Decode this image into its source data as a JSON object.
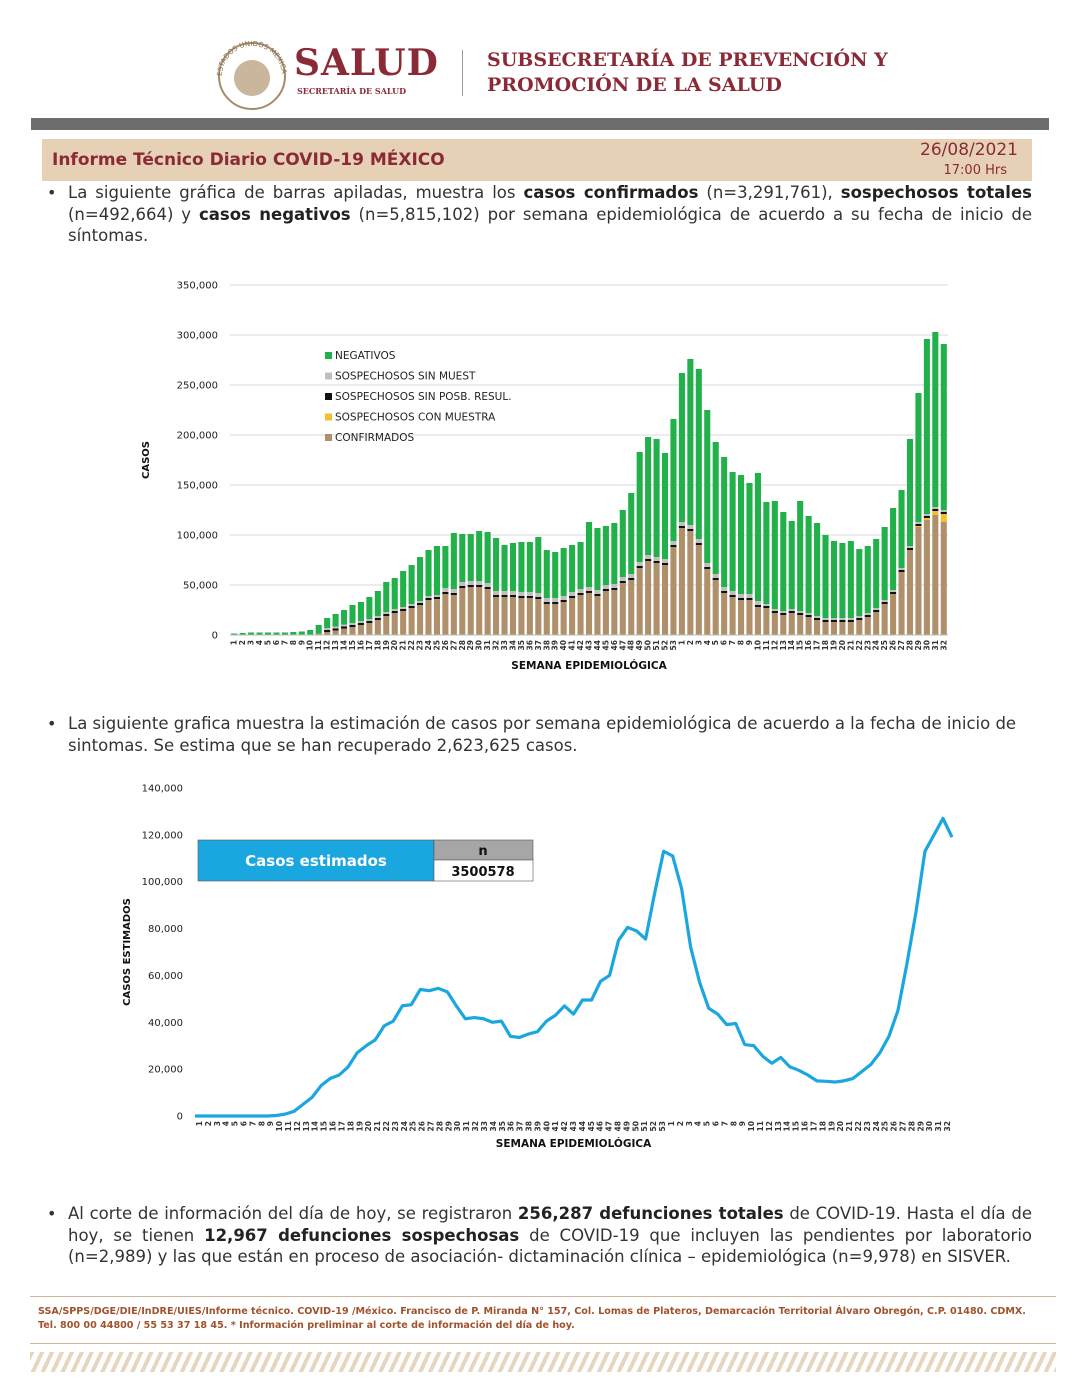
{
  "header": {
    "seal_text": "ESTADOS UNIDOS MEXICANOS",
    "brand": "SALUD",
    "brand_sub": "SECRETARÍA DE SALUD",
    "office_line1": "SUBSECRETARÍA DE PREVENCIÓN Y",
    "office_line2": "PROMOCIÓN DE LA SALUD"
  },
  "report": {
    "title": "Informe Técnico Diario COVID-19 MÉXICO",
    "date": "26/08/2021",
    "time": "17:00 Hrs"
  },
  "paragraphs": [
    [
      {
        "text": "La siguiente gráfica de barras apiladas, muestra los "
      },
      {
        "text": "casos confirmados",
        "bold": true
      },
      {
        "text": " (n=3,291,761), "
      },
      {
        "text": "sospechosos totales",
        "bold": true
      },
      {
        "text": " (n=492,664) y "
      },
      {
        "text": "casos negativos",
        "bold": true
      },
      {
        "text": " (n=5,815,102) por semana epidemiológica de acuerdo a su fecha de inicio de síntomas."
      }
    ],
    [
      {
        "text": "La siguiente grafica muestra la estimación de casos por semana epidemiológica de acuerdo a la fecha de inicio de sintomas. Se estima que se han recuperado 2,623,625 casos."
      }
    ],
    [
      {
        "text": "Al corte de información del día de hoy, se registraron "
      },
      {
        "text": "256,287 defunciones totales",
        "bold": true
      },
      {
        "text": " de COVID-19. Hasta el día de hoy, se tienen "
      },
      {
        "text": "12,967 defunciones sospechosas",
        "bold": true
      },
      {
        "text": " de COVID-19 que incluyen las pendientes por laboratorio (n=2,989) y las que están en proceso de asociación- dictaminación clínica – epidemiológica (n=9,978) en SISVER."
      }
    ]
  ],
  "footer": {
    "line1": "SSA/SPPS/DGE/DIE/InDRE/UIES/Informe técnico. COVID-19 /México. Francisco de P. Miranda N° 157, Col. Lomas de Plateros, Demarcación Territorial Álvaro Obregón, C.P. 01480. CDMX.",
    "line2": "Tel. 800 00 44800 / 55 53 37 18 45. * Información preliminar al corte de información del día de hoy."
  },
  "chart_data": [
    {
      "type": "stacked_bar",
      "x_label": "SEMANA EPIDEMIOLÓGICA",
      "y_label": "CASOS",
      "grid": true,
      "categories": [
        "1",
        "2",
        "3",
        "4",
        "5",
        "6",
        "7",
        "8",
        "9",
        "10",
        "11",
        "12",
        "13",
        "14",
        "15",
        "16",
        "17",
        "18",
        "19",
        "20",
        "21",
        "22",
        "23",
        "24",
        "25",
        "26",
        "27",
        "28",
        "29",
        "30",
        "31",
        "32",
        "33",
        "34",
        "35",
        "36",
        "37",
        "38",
        "39",
        "40",
        "41",
        "42",
        "43",
        "44",
        "45",
        "46",
        "47",
        "48",
        "49",
        "50",
        "51",
        "52",
        "53",
        "1",
        "2",
        "3",
        "4",
        "5",
        "6",
        "7",
        "8",
        "9",
        "10",
        "11",
        "12",
        "13",
        "14",
        "15",
        "16",
        "17",
        "18",
        "19",
        "20",
        "21",
        "22",
        "23",
        "24",
        "25",
        "26",
        "27",
        "28",
        "29",
        "30",
        "31",
        "32"
      ],
      "ylim": [
        0,
        350000
      ],
      "yticks": [
        0,
        {
          "value": 50000,
          "label": "50,000"
        },
        {
          "value": 100000,
          "label": "100,000"
        },
        {
          "value": 150000,
          "label": "150,000"
        },
        {
          "value": 200000,
          "label": "200,000"
        },
        {
          "value": 250000,
          "label": "250,000"
        },
        {
          "value": 300000,
          "label": "300,000"
        },
        {
          "value": 350000,
          "label": "350,000"
        }
      ],
      "series": [
        {
          "name": "CONFIRMADOS",
          "color": "#b0906a",
          "values": [
            0,
            0,
            0,
            0,
            0,
            0,
            0,
            100,
            200,
            500,
            1500,
            3000,
            4500,
            6500,
            8000,
            10000,
            12000,
            15000,
            19000,
            22000,
            24000,
            27000,
            30000,
            35000,
            36000,
            41000,
            40000,
            47000,
            48000,
            48000,
            46000,
            38000,
            38000,
            38000,
            37000,
            37000,
            36000,
            31000,
            31000,
            33000,
            37000,
            40000,
            42000,
            39000,
            44000,
            45000,
            52000,
            55000,
            67000,
            74000,
            72000,
            70000,
            88000,
            107000,
            104000,
            90000,
            66000,
            55000,
            42000,
            38000,
            35000,
            35000,
            28000,
            27000,
            22000,
            20000,
            22000,
            20000,
            18000,
            15000,
            13000,
            13000,
            13000,
            13000,
            15000,
            18000,
            23000,
            31000,
            41000,
            63000,
            85000,
            108000,
            115000,
            120000,
            113000
          ]
        },
        {
          "name": "SOSPECHOSOS CON MUESTRA",
          "color": "#f2c12e",
          "values": [
            0,
            0,
            0,
            0,
            0,
            0,
            0,
            0,
            0,
            0,
            0,
            0,
            0,
            0,
            0,
            0,
            0,
            0,
            0,
            0,
            0,
            0,
            0,
            0,
            0,
            0,
            0,
            0,
            0,
            0,
            0,
            0,
            0,
            0,
            0,
            0,
            0,
            0,
            0,
            0,
            0,
            0,
            0,
            0,
            0,
            0,
            0,
            0,
            0,
            0,
            0,
            0,
            0,
            0,
            0,
            0,
            0,
            0,
            0,
            0,
            0,
            0,
            0,
            0,
            0,
            0,
            0,
            0,
            0,
            0,
            0,
            0,
            0,
            0,
            0,
            0,
            0,
            0,
            0,
            0,
            0,
            1000,
            2000,
            4000,
            8000
          ]
        },
        {
          "name": "SOSPECHOSOS SIN POSB. RESUL.",
          "color": "#111111",
          "values": [
            0,
            0,
            0,
            0,
            0,
            0,
            0,
            0,
            0,
            0,
            0,
            2000,
            2000,
            2000,
            2000,
            2000,
            2000,
            2000,
            2000,
            2000,
            2000,
            2000,
            2000,
            2000,
            2000,
            2000,
            2000,
            2000,
            2000,
            2000,
            2000,
            2000,
            2000,
            2000,
            2000,
            2000,
            2000,
            2000,
            2000,
            2000,
            2000,
            2000,
            2000,
            2000,
            2000,
            2000,
            2000,
            2000,
            2000,
            2000,
            2000,
            2000,
            2000,
            2000,
            2000,
            2000,
            2000,
            2000,
            2000,
            2000,
            2000,
            2000,
            2000,
            2000,
            2000,
            2000,
            2000,
            2000,
            2000,
            2000,
            2000,
            2000,
            2000,
            2000,
            2000,
            2000,
            2000,
            2000,
            2000,
            2000,
            2000,
            2000,
            2000,
            2000,
            2000
          ]
        },
        {
          "name": "SOSPECHOSOS SIN MUEST",
          "color": "#bfbfbf",
          "values": [
            0,
            0,
            0,
            0,
            0,
            0,
            0,
            0,
            0,
            0,
            0,
            2000,
            2000,
            2000,
            2000,
            2000,
            2000,
            2000,
            2000,
            2000,
            2000,
            2000,
            2000,
            2000,
            2000,
            4000,
            4000,
            4000,
            4000,
            4000,
            4000,
            4000,
            4000,
            4000,
            4000,
            4000,
            4000,
            4000,
            4000,
            4000,
            4000,
            4000,
            4000,
            4000,
            4000,
            4000,
            4000,
            4000,
            4000,
            4000,
            4000,
            4000,
            4000,
            4000,
            4000,
            4000,
            4000,
            4000,
            4000,
            4000,
            4000,
            4000,
            4000,
            2000,
            2000,
            2000,
            2000,
            2000,
            2000,
            2000,
            2000,
            2000,
            2000,
            2000,
            2000,
            2000,
            2000,
            2000,
            2000,
            2000,
            2000,
            2000,
            2000,
            2000,
            2000
          ]
        },
        {
          "name": "NEGATIVOS",
          "color": "#22b04b",
          "values": [
            1500,
            2000,
            2500,
            2500,
            2500,
            2500,
            2500,
            2900,
            3300,
            4500,
            8500,
            10000,
            12500,
            14500,
            18000,
            19000,
            22000,
            25000,
            30000,
            31000,
            36000,
            39000,
            44000,
            46000,
            49000,
            42000,
            56000,
            48000,
            47000,
            50000,
            51000,
            53000,
            46000,
            48000,
            50000,
            50000,
            56000,
            48000,
            46000,
            48000,
            47000,
            47000,
            65000,
            62000,
            59000,
            61000,
            67000,
            81000,
            110000,
            118000,
            118000,
            106000,
            122000,
            149000,
            166000,
            170000,
            153000,
            132000,
            130000,
            119000,
            119000,
            111000,
            128000,
            102000,
            108000,
            99000,
            88000,
            110000,
            97000,
            93000,
            83000,
            77000,
            75000,
            77000,
            67000,
            67000,
            69000,
            73000,
            82000,
            78000,
            107000,
            129000,
            175000,
            175000,
            166000
          ]
        }
      ]
    },
    {
      "type": "line",
      "x_label": "SEMANA EPIDEMIOLÓGICA",
      "y_label": "CASOS ESTIMADOS",
      "grid": false,
      "color": "#1aa7e0",
      "inset": {
        "label": "Casos estimados",
        "header": "n",
        "value": "3500578"
      },
      "categories": [
        "1",
        "2",
        "3",
        "4",
        "5",
        "6",
        "7",
        "8",
        "9",
        "10",
        "11",
        "12",
        "13",
        "14",
        "15",
        "16",
        "17",
        "18",
        "19",
        "20",
        "21",
        "22",
        "23",
        "24",
        "25",
        "26",
        "27",
        "28",
        "29",
        "30",
        "31",
        "32",
        "33",
        "34",
        "35",
        "36",
        "37",
        "38",
        "39",
        "40",
        "41",
        "42",
        "43",
        "44",
        "45",
        "46",
        "47",
        "48",
        "49",
        "50",
        "51",
        "52",
        "53",
        "1",
        "2",
        "3",
        "4",
        "5",
        "6",
        "7",
        "8",
        "9",
        "10",
        "11",
        "12",
        "13",
        "14",
        "15",
        "16",
        "17",
        "18",
        "19",
        "20",
        "21",
        "22",
        "23",
        "24",
        "25",
        "26",
        "27",
        "28",
        "29",
        "30",
        "31",
        "32"
      ],
      "ylim": [
        0,
        140000
      ],
      "yticks": [
        0,
        {
          "value": 20000,
          "label": "20,000"
        },
        {
          "value": 40000,
          "label": "40,000"
        },
        {
          "value": 60000,
          "label": "60,000"
        },
        {
          "value": 80000,
          "label": "80,000"
        },
        {
          "value": 100000,
          "label": "100,000"
        },
        {
          "value": 120000,
          "label": "120,000"
        },
        {
          "value": 140000,
          "label": "140,000"
        }
      ],
      "values": [
        0,
        0,
        0,
        0,
        0,
        0,
        0,
        0,
        0,
        200,
        800,
        2000,
        5000,
        8000,
        13000,
        16000,
        17500,
        21000,
        27000,
        30000,
        32500,
        38500,
        40500,
        47000,
        47500,
        54000,
        53500,
        54500,
        53000,
        47000,
        41500,
        42000,
        41500,
        40000,
        40500,
        34000,
        33500,
        35000,
        36000,
        40500,
        43000,
        47000,
        43500,
        49500,
        49500,
        57500,
        60000,
        75000,
        80500,
        79000,
        75500,
        95000,
        113000,
        111000,
        97000,
        72000,
        57000,
        46000,
        43500,
        39000,
        39500,
        30500,
        30000,
        25500,
        22500,
        25000,
        21000,
        19500,
        17500,
        15000,
        14800,
        14500,
        15000,
        16000,
        19000,
        22000,
        27000,
        34000,
        45000,
        65000,
        87000,
        113000,
        120000,
        127000,
        119000
      ]
    }
  ]
}
